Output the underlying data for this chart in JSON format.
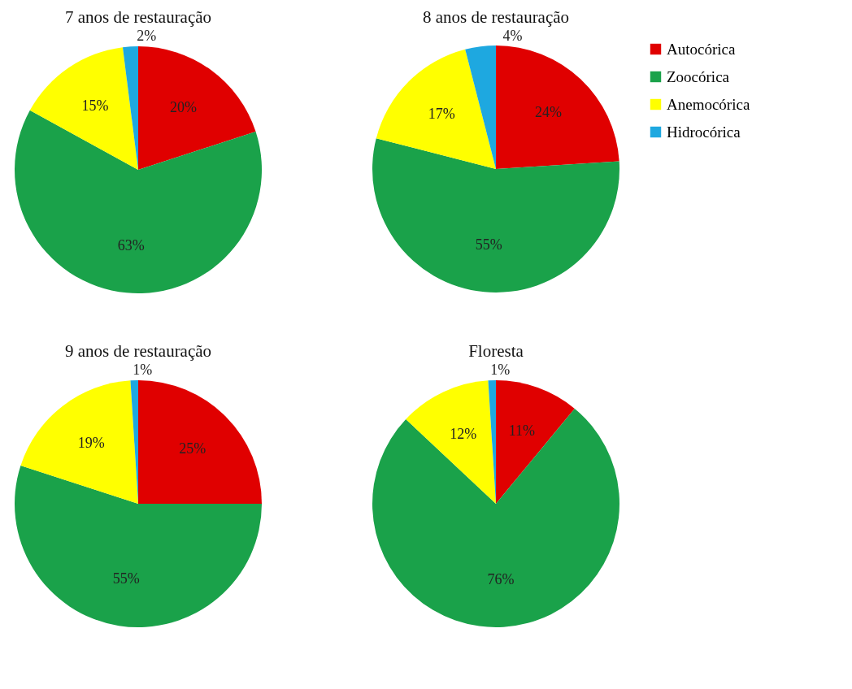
{
  "chart_data": [
    {
      "type": "pie",
      "title": "7 anos de restauração",
      "categories": [
        null,
        null,
        null,
        null
      ],
      "values": [
        20,
        63,
        15,
        2
      ],
      "value_labels": [
        "20%",
        "63%",
        "15%",
        "2%"
      ],
      "colors": [
        "#e00000",
        "#1aa24a",
        "#ffff00",
        "#1ea8e0"
      ],
      "legend": false
    },
    {
      "type": "pie",
      "title": "8 anos de restauração",
      "categories": [
        "Autocórica",
        "Zoocórica",
        "Anemocórica",
        "Hidrocórica"
      ],
      "values": [
        24,
        55,
        17,
        4
      ],
      "value_labels": [
        "24%",
        "55%",
        "17%",
        "4%"
      ],
      "colors": [
        "#e00000",
        "#1aa24a",
        "#ffff00",
        "#1ea8e0"
      ],
      "legend": "top right"
    },
    {
      "type": "pie",
      "title": "9 anos de restauração",
      "categories": [
        null,
        null,
        null,
        null
      ],
      "values": [
        25,
        55,
        19,
        1
      ],
      "value_labels": [
        "25%",
        "55%",
        "19%",
        "1%"
      ],
      "colors": [
        "#e00000",
        "#1aa24a",
        "#ffff00",
        "#1ea8e0"
      ],
      "legend": false
    },
    {
      "type": "pie",
      "title": "Floresta",
      "categories": [
        null,
        null,
        null,
        null
      ],
      "values": [
        11,
        76,
        12,
        1
      ],
      "value_labels": [
        "11%",
        "76%",
        "12%",
        "1%"
      ],
      "colors": [
        "#e00000",
        "#1aa24a",
        "#ffff00",
        "#1ea8e0"
      ],
      "legend": false
    }
  ]
}
